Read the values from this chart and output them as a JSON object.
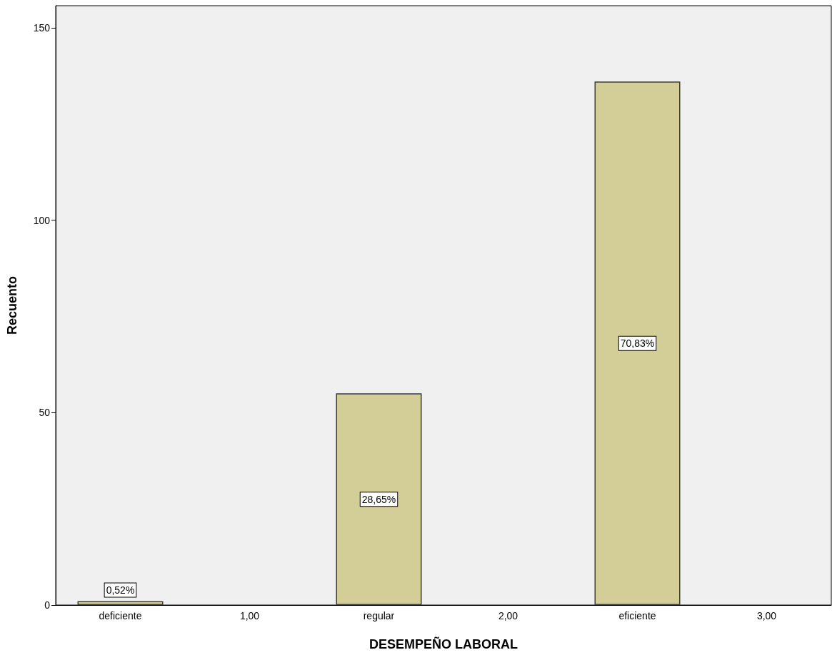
{
  "chart_data": {
    "type": "bar",
    "xlabel": "DESEMPEÑO LABORAL",
    "ylabel": "Recuento",
    "categories": [
      "deficiente",
      "1,00",
      "regular",
      "2,00",
      "eficiente",
      "3,00"
    ],
    "values": [
      1,
      0,
      55,
      0,
      136,
      0
    ],
    "annotations": [
      "0,52%",
      "28,65%",
      "70,83%"
    ],
    "color": "#d3ce97",
    "ylim": [
      0,
      155.7
    ],
    "yticks": [
      0,
      50,
      100,
      150
    ],
    "grid": false
  }
}
